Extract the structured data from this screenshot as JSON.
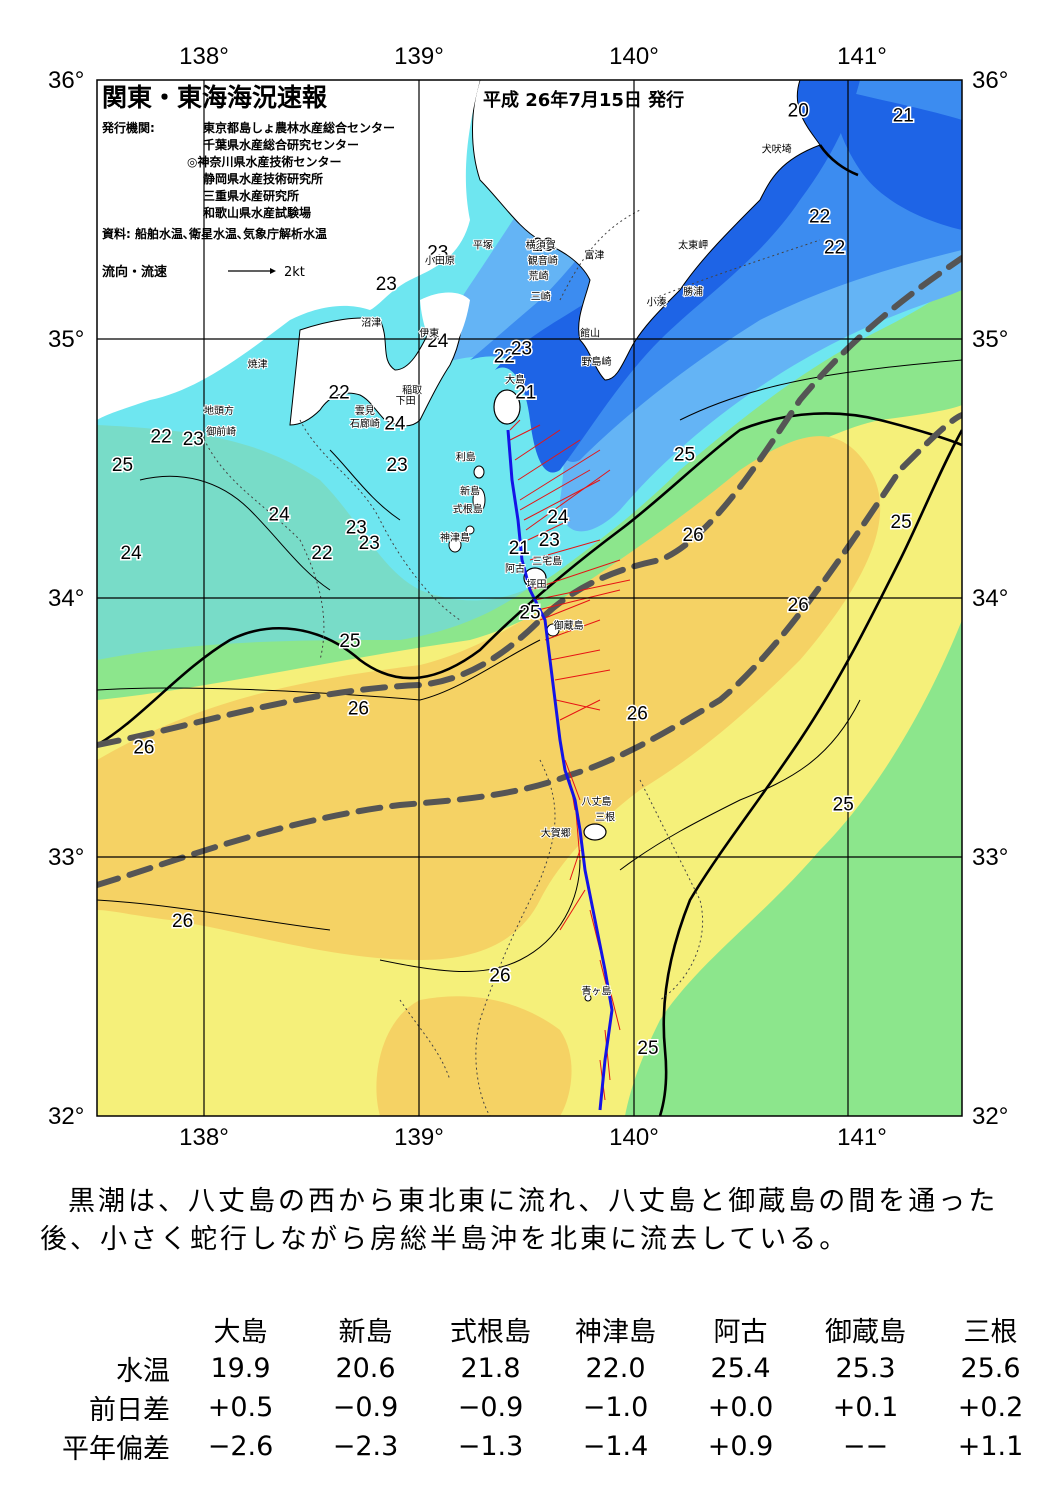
{
  "title": "関東・東海海況速報",
  "issue_date": "平成 26年7月15日 発行",
  "publisher_label": "発行機関:",
  "publishers": [
    "東京都島しょ農林水産総合センター",
    "千葉県水産総合研究センター",
    "◎神奈川県水産技術センター",
    "静岡県水産技術研究所",
    "三重県水産研究所",
    "和歌山県水産試験場"
  ],
  "sources": "資料: 船舶水温､衛星水温､気象庁解析水温",
  "current_legend": {
    "label": "流向・流速",
    "speed": "2kt"
  },
  "axes": {
    "lon_ticks": [
      "138°",
      "139°",
      "140°",
      "141°"
    ],
    "lat_ticks": [
      "36°",
      "35°",
      "34°",
      "33°",
      "32°"
    ]
  },
  "colors": {
    "deep_blue": "#1e64e6",
    "blue": "#3c8cf0",
    "light_blue": "#64b4f5",
    "cyan": "#6ee6f0",
    "teal": "#78dcc8",
    "green": "#8ce68c",
    "yellow": "#f5f07a",
    "orange": "#f5d264",
    "land": "#ffffff",
    "kuroshio_path": "#555555",
    "ship_track": "#1414e6",
    "current_vectors": "#e61414"
  },
  "isotherm_labels": [
    {
      "text": "20",
      "lon": 140.77,
      "lat": 35.86
    },
    {
      "text": "21",
      "lon": 141.26,
      "lat": 35.84
    },
    {
      "text": "22",
      "lon": 140.87,
      "lat": 35.45
    },
    {
      "text": "22",
      "lon": 140.94,
      "lat": 35.33
    },
    {
      "text": "23",
      "lon": 139.58,
      "lat": 35.34
    },
    {
      "text": "23",
      "lon": 138.85,
      "lat": 35.19
    },
    {
      "text": "24",
      "lon": 139.09,
      "lat": 34.97
    },
    {
      "text": "22",
      "lon": 139.4,
      "lat": 34.91
    },
    {
      "text": "23",
      "lon": 139.48,
      "lat": 34.94
    },
    {
      "text": "21",
      "lon": 139.5,
      "lat": 34.77
    },
    {
      "text": "22",
      "lon": 138.63,
      "lat": 34.77
    },
    {
      "text": "24",
      "lon": 138.89,
      "lat": 34.65
    },
    {
      "text": "22",
      "lon": 137.8,
      "lat": 34.6
    },
    {
      "text": "23",
      "lon": 137.95,
      "lat": 34.59
    },
    {
      "text": "25",
      "lon": 137.62,
      "lat": 34.49
    },
    {
      "text": "23",
      "lon": 138.9,
      "lat": 34.49
    },
    {
      "text": "24",
      "lon": 138.35,
      "lat": 34.3
    },
    {
      "text": "23",
      "lon": 138.77,
      "lat": 34.19
    },
    {
      "text": "22",
      "lon": 138.55,
      "lat": 34.15
    },
    {
      "text": "24",
      "lon": 137.66,
      "lat": 34.15
    },
    {
      "text": "23",
      "lon": 138.71,
      "lat": 34.25
    },
    {
      "text": "24",
      "lon": 139.65,
      "lat": 34.29
    },
    {
      "text": "23",
      "lon": 139.61,
      "lat": 34.2
    },
    {
      "text": "21",
      "lon": 139.47,
      "lat": 34.17
    },
    {
      "text": "25",
      "lon": 140.24,
      "lat": 34.53
    },
    {
      "text": "26",
      "lon": 140.28,
      "lat": 34.22
    },
    {
      "text": "25",
      "lon": 141.25,
      "lat": 34.27
    },
    {
      "text": "26",
      "lon": 140.77,
      "lat": 33.95
    },
    {
      "text": "25",
      "lon": 139.52,
      "lat": 33.92
    },
    {
      "text": "25",
      "lon": 138.68,
      "lat": 33.81
    },
    {
      "text": "26",
      "lon": 138.72,
      "lat": 33.55
    },
    {
      "text": "26",
      "lon": 140.02,
      "lat": 33.53
    },
    {
      "text": "26",
      "lon": 137.72,
      "lat": 33.4
    },
    {
      "text": "25",
      "lon": 140.98,
      "lat": 33.18
    },
    {
      "text": "26",
      "lon": 137.9,
      "lat": 32.73
    },
    {
      "text": "26",
      "lon": 139.38,
      "lat": 32.52
    },
    {
      "text": "25",
      "lon": 140.07,
      "lat": 32.24
    },
    {
      "text": "23",
      "lon": 139.09,
      "lat": 35.31
    }
  ],
  "places": [
    {
      "text": "犬吠埼",
      "lon": 140.67,
      "lat": 35.72
    },
    {
      "text": "太東岬",
      "lon": 140.28,
      "lat": 35.35
    },
    {
      "text": "勝浦",
      "lon": 140.28,
      "lat": 35.17
    },
    {
      "text": "小湊",
      "lon": 140.11,
      "lat": 35.13
    },
    {
      "text": "富津",
      "lon": 139.82,
      "lat": 35.31
    },
    {
      "text": "館山",
      "lon": 139.8,
      "lat": 35.01
    },
    {
      "text": "野島崎",
      "lon": 139.83,
      "lat": 34.9
    },
    {
      "text": "横須賀",
      "lon": 139.57,
      "lat": 35.35
    },
    {
      "text": "観音崎",
      "lon": 139.58,
      "lat": 35.29
    },
    {
      "text": "荒崎",
      "lon": 139.56,
      "lat": 35.23
    },
    {
      "text": "三崎",
      "lon": 139.57,
      "lat": 35.15
    },
    {
      "text": "平塚",
      "lon": 139.3,
      "lat": 35.35
    },
    {
      "text": "小田原",
      "lon": 139.1,
      "lat": 35.29
    },
    {
      "text": "沼津",
      "lon": 138.78,
      "lat": 35.05
    },
    {
      "text": "伊東",
      "lon": 139.05,
      "lat": 35.01
    },
    {
      "text": "焼津",
      "lon": 138.25,
      "lat": 34.89
    },
    {
      "text": "稲取",
      "lon": 138.97,
      "lat": 34.79
    },
    {
      "text": "下田",
      "lon": 138.94,
      "lat": 34.75
    },
    {
      "text": "雲見",
      "lon": 138.75,
      "lat": 34.71
    },
    {
      "text": "石廊崎",
      "lon": 138.75,
      "lat": 34.66
    },
    {
      "text": "地頭方",
      "lon": 138.07,
      "lat": 34.71
    },
    {
      "text": "御前崎",
      "lon": 138.08,
      "lat": 34.63
    },
    {
      "text": "大島",
      "lon": 139.45,
      "lat": 34.83
    },
    {
      "text": "利島",
      "lon": 139.22,
      "lat": 34.53
    },
    {
      "text": "新島",
      "lon": 139.24,
      "lat": 34.4
    },
    {
      "text": "式根島",
      "lon": 139.23,
      "lat": 34.33
    },
    {
      "text": "神津島",
      "lon": 139.17,
      "lat": 34.22
    },
    {
      "text": "阿古",
      "lon": 139.45,
      "lat": 34.1
    },
    {
      "text": "坪田",
      "lon": 139.55,
      "lat": 34.04
    },
    {
      "text": "三宅島",
      "lon": 139.6,
      "lat": 34.13
    },
    {
      "text": "御蔵島",
      "lon": 139.7,
      "lat": 33.88
    },
    {
      "text": "八丈島",
      "lon": 139.83,
      "lat": 33.2
    },
    {
      "text": "三根",
      "lon": 139.87,
      "lat": 33.14
    },
    {
      "text": "大賀郷",
      "lon": 139.64,
      "lat": 33.08
    },
    {
      "text": "青ヶ島",
      "lon": 139.83,
      "lat": 32.47
    }
  ],
  "summary": "黒潮は、八丈島の西から東北東に流れ、八丈島と御蔵島の間を通った後、小さく蛇行しながら房総半島沖を北東に流去している。",
  "table": {
    "stations": [
      "大島",
      "新島",
      "式根島",
      "神津島",
      "阿古",
      "御蔵島",
      "三根"
    ],
    "rows": [
      {
        "label": "水温",
        "values": [
          "19.9",
          "20.6",
          "21.8",
          "22.0",
          "25.4",
          "25.3",
          "25.6"
        ]
      },
      {
        "label": "前日差",
        "values": [
          "+0.5",
          "−0.9",
          "−0.9",
          "−1.0",
          "+0.0",
          "+0.1",
          "+0.2"
        ]
      },
      {
        "label": "平年偏差",
        "values": [
          "−2.6",
          "−2.3",
          "−1.3",
          "−1.4",
          "+0.9",
          "−−",
          "+1.1"
        ]
      }
    ]
  }
}
